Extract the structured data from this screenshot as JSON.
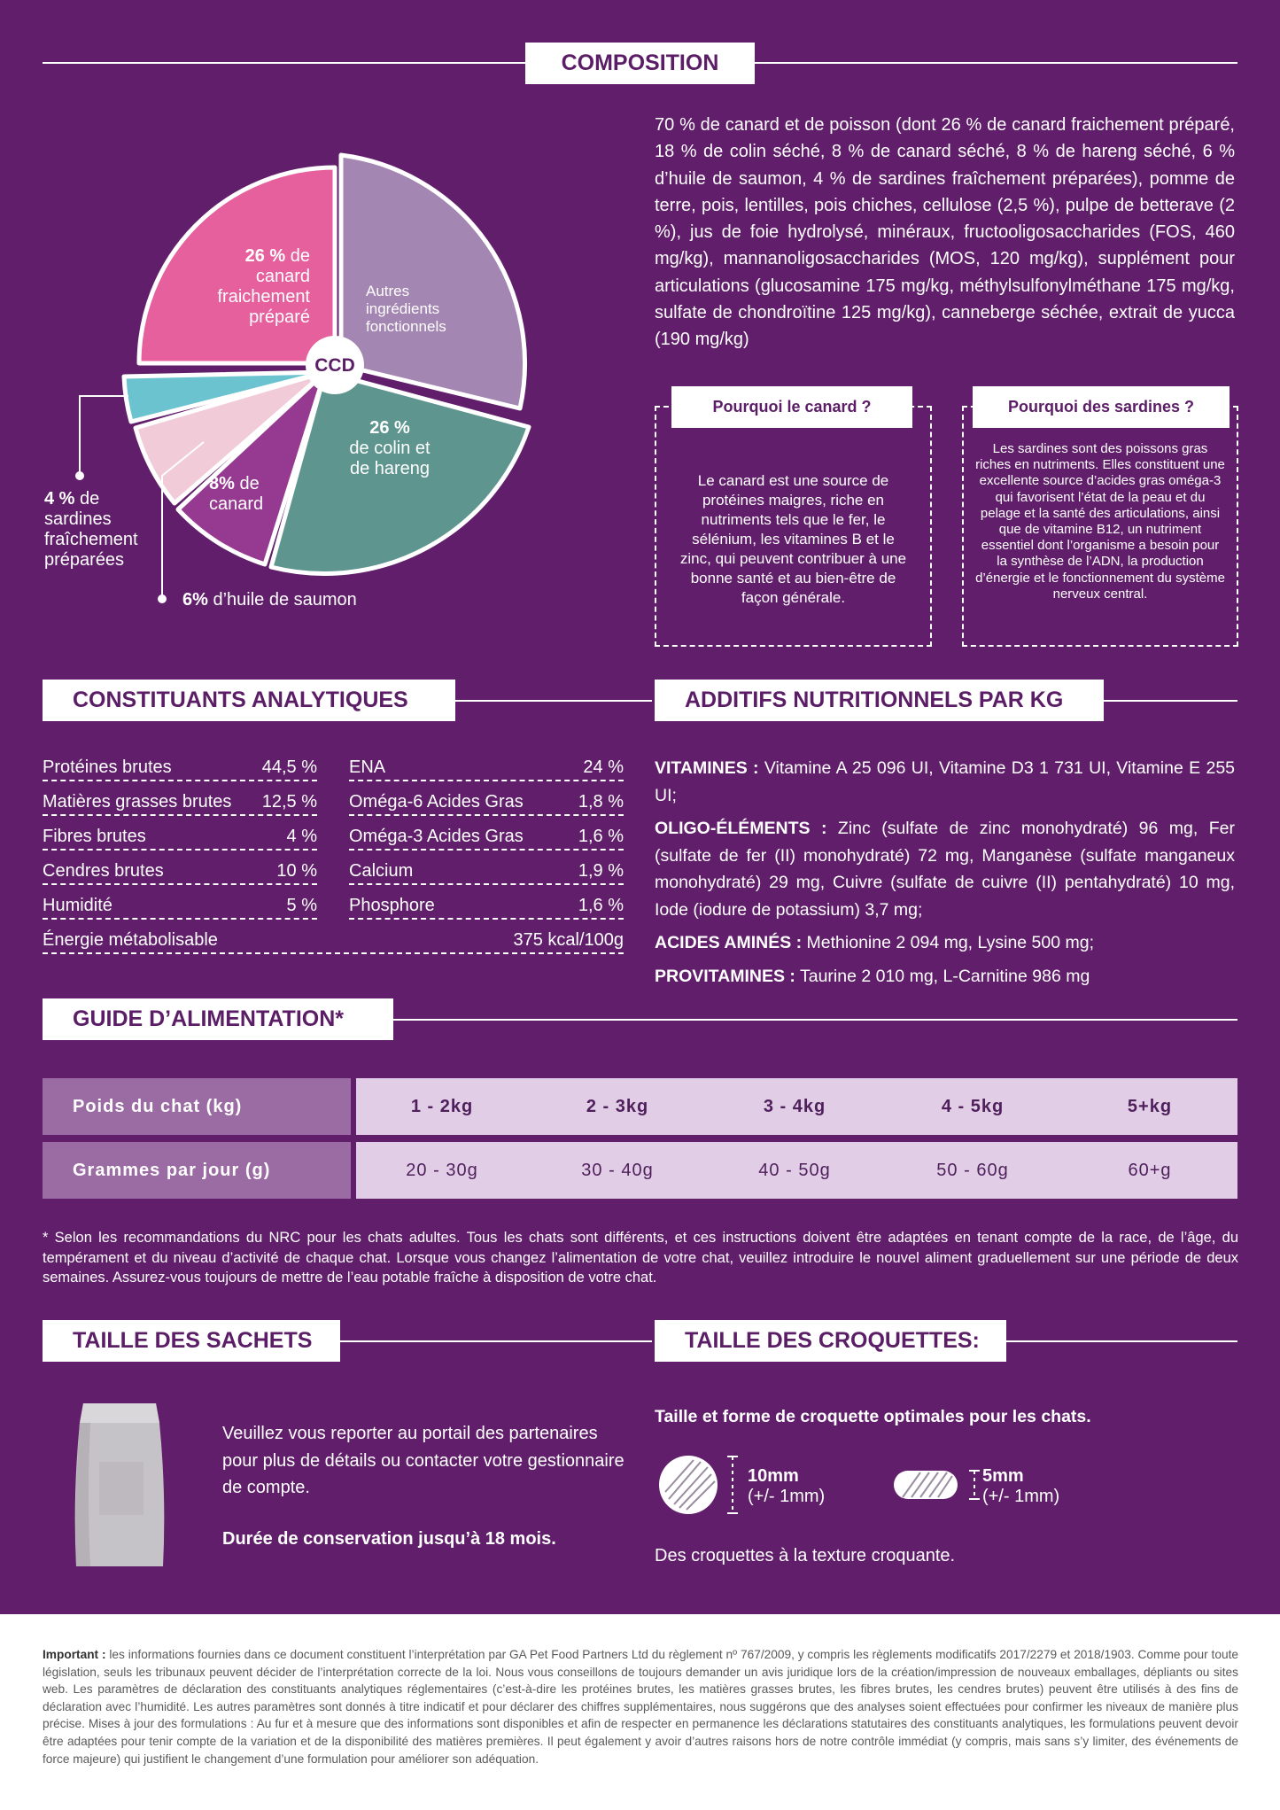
{
  "composition": {
    "heading": "COMPOSITION",
    "text": "70 % de canard et de poisson (dont 26 % de canard fraichement préparé, 18 % de colin séché, 8 % de canard séché, 8 % de hareng séché, 6 % d’huile de saumon, 4 % de sardines fraîchement préparées), pomme de terre, pois, lentilles, pois chiches, cellulose (2,5 %), pulpe de betterave (2 %), jus de foie hydrolysé, minéraux, fructooligosaccharides (FOS, 460 mg/kg), mannanoligosaccharides (MOS, 120 mg/kg), supplément pour articulations (glucosamine 175 mg/kg, méthylsulfonylméthane 175 mg/kg, sulfate de chondroïtine 125 mg/kg), canneberge séchée, extrait de yucca (190 mg/kg)",
    "pie": {
      "center": "CCD",
      "canard_pct": "26 %",
      "canard_rest": "de",
      "canard_l2": "canard",
      "canard_l3": "fraichement",
      "canard_l4": "préparé",
      "autres_l1": "Autres",
      "autres_l2": "ingrédients",
      "autres_l3": "fonctionnels",
      "colin_pct": "26 %",
      "colin_l2": "de colin et",
      "colin_l3": "de hareng",
      "canard8_pct": "8%",
      "canard8_rest": "de",
      "canard8_l2": "canard",
      "sardines_pct": "4 %",
      "sardines_rest": "de",
      "sardines_l2": "sardines",
      "sardines_l3": "fraîchement",
      "sardines_l4": "préparées",
      "huile_pct": "6%",
      "huile_rest": "d’huile de saumon",
      "colors": {
        "canard": "#e5609d",
        "autres": "#a486b2",
        "colin": "#5e958e",
        "canard8": "#953a90",
        "huile": "#f1cbd8",
        "sardines": "#6cc3d0"
      }
    },
    "box_canard": {
      "title": "Pourquoi le canard ?",
      "text": "Le canard est une source de protéines maigres, riche en nutriments tels que le fer, le sélénium, les vitamines B et le zinc, qui peuvent contribuer à une bonne santé et au bien-être de façon générale."
    },
    "box_sardines": {
      "title": "Pourquoi des sardines ?",
      "text": "Les sardines sont des poissons gras riches en nutriments. Elles constituent une excellente source d’acides gras oméga-3 qui favorisent l’état de la peau et du pelage et la santé des articulations, ainsi que de vitamine B12, un nutriment essentiel dont l’organisme a besoin pour la synthèse de l’ADN, la production d’énergie et le fonctionnement du système nerveux central."
    }
  },
  "analytiques": {
    "heading": "CONSTITUANTS ANALYTIQUES",
    "left": [
      {
        "label": "Protéines brutes",
        "value": "44,5 %"
      },
      {
        "label": "Matières grasses brutes",
        "value": "12,5 %"
      },
      {
        "label": "Fibres brutes",
        "value": "4 %"
      },
      {
        "label": "Cendres brutes",
        "value": "10 %"
      },
      {
        "label": "Humidité",
        "value": "5 %"
      }
    ],
    "right": [
      {
        "label": "ENA",
        "value": "24 %"
      },
      {
        "label": "Oméga-6 Acides Gras",
        "value": "1,8 %"
      },
      {
        "label": "Oméga-3 Acides Gras",
        "value": "1,6 %"
      },
      {
        "label": "Calcium",
        "value": "1,9 %"
      },
      {
        "label": "Phosphore",
        "value": "1,6 %"
      }
    ],
    "energy": {
      "label": "Énergie métabolisable",
      "value": "375 kcal/100g"
    }
  },
  "additifs": {
    "heading": "ADDITIFS NUTRITIONNELS PAR KG",
    "vitamines_label": "VITAMINES :",
    "vitamines": "Vitamine A 25 096 UI, Vitamine D3 1 731 UI, Vitamine E 255 UI;",
    "oligo_label": "OLIGO-ÉLÉMENTS :",
    "oligo": "Zinc (sulfate de zinc monohydraté) 96 mg, Fer (sulfate de fer (II) monohydraté) 72 mg, Manganèse (sulfate manganeux monohydraté) 29 mg, Cuivre (sulfate de cuivre (II) pentahydraté) 10 mg, Iode (iodure de potassium) 3,7 mg;",
    "acides_label": "ACIDES AMINÉS :",
    "acides": "Methionine 2 094 mg, Lysine 500 mg;",
    "provit_label": "PROVITAMINES :",
    "provit": "Taurine 2 010 mg, L-Carnitine 986 mg"
  },
  "guide": {
    "heading": "GUIDE D’ALIMENTATION*",
    "row1_label": "Poids du chat (kg)",
    "row2_label": "Grammes par jour (g)",
    "weights": [
      "1 - 2kg",
      "2 - 3kg",
      "3 - 4kg",
      "4 - 5kg",
      "5+kg"
    ],
    "grams": [
      "20 - 30g",
      "30 - 40g",
      "40 - 50g",
      "50 - 60g",
      "60+g"
    ],
    "footnote": "* Selon les recommandations du NRC pour les chats adultes. Tous les chats sont différents, et ces instructions doivent être adaptées en tenant compte de la race, de l’âge, du tempérament et du niveau d’activité de chaque chat. Lorsque vous changez l’alimentation de votre chat, veuillez introduire le nouvel aliment graduellement sur une période de deux semaines. Assurez-vous toujours de mettre de l’eau potable fraîche à disposition de votre chat."
  },
  "sachets": {
    "heading": "TAILLE DES SACHETS",
    "text": "Veuillez vous reporter au portail des partenaires pour plus de détails ou contacter votre gestionnaire de compte.",
    "shelf": "Durée de conservation jusqu’à 18 mois."
  },
  "croquettes": {
    "heading": "TAILLE DES CROQUETTES:",
    "subtitle": "Taille et forme de croquette optimales pour les chats.",
    "size1": "10mm",
    "tol1": "(+/- 1mm)",
    "size2": "5mm",
    "tol2": "(+/- 1mm)",
    "texture": "Des croquettes à la texture croquante."
  },
  "legal": {
    "label": "Important :",
    "text": "les informations fournies dans ce document constituent l’interprétation par GA Pet Food Partners Ltd du règlement nº 767/2009, y compris les règlements modificatifs 2017/2279 et 2018/1903. Comme pour toute législation, seuls les tribunaux peuvent décider de l’interprétation correcte de la loi. Nous vous conseillons de toujours demander un avis juridique lors de la création/impression de nouveaux emballages, dépliants ou sites web. Les paramètres de déclaration des constituants analytiques réglementaires (c’est-à-dire les protéines brutes, les matières grasses brutes, les fibres brutes, les cendres brutes) peuvent être utilisés à des fins de déclaration avec l’humidité. Les autres paramètres sont donnés à titre indicatif et pour déclarer des chiffres supplémentaires, nous suggérons que des analyses soient effectuées pour confirmer les niveaux de manière plus précise. Mises à jour des formulations : Au fur et à mesure que des informations sont disponibles et afin de respecter en permanence les déclarations statutaires des constituants analytiques, les formulations peuvent devoir être adaptées pour tenir compte de la variation et de la disponibilité des matières premières. Il peut également y avoir d’autres raisons hors de notre contrôle immédiat (y compris, mais sans s’y limiter, des événements de force majeure) qui justifient le changement d’une formulation pour améliorer son adéquation."
  }
}
